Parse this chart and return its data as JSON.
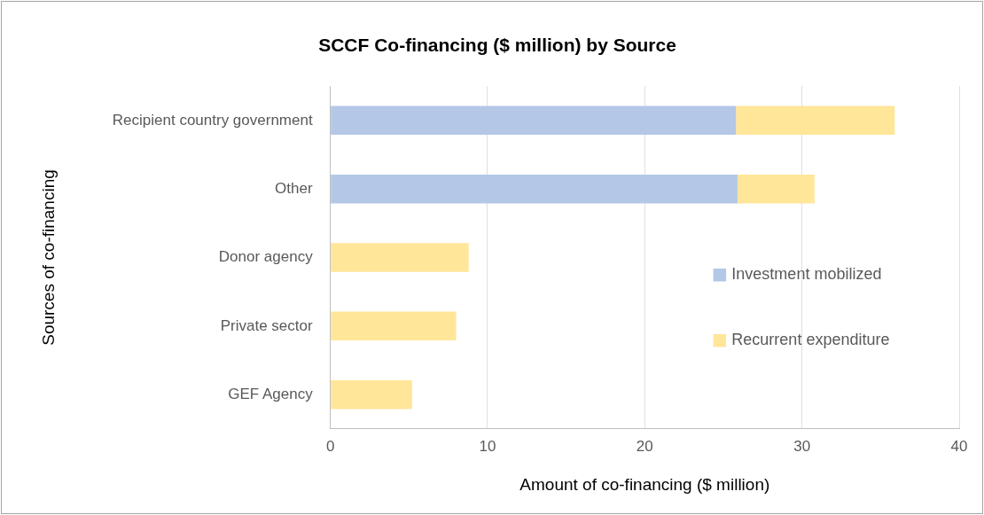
{
  "chart_data": {
    "type": "bar",
    "orientation": "horizontal",
    "stacked": true,
    "title": "SCCF Co-financing ($ million) by Source",
    "xlabel": "Amount of co-financing ($ million)",
    "ylabel": "Sources of co-financing",
    "categories": [
      "Recipient country government",
      "Other",
      "Donor agency",
      "Private sector",
      "GEF Agency"
    ],
    "series": [
      {
        "name": "Investment mobilized",
        "color": "#b4c7e7",
        "values": [
          25.8,
          25.9,
          null,
          null,
          null
        ]
      },
      {
        "name": "Recurrent expenditure",
        "color": "#ffe699",
        "values": [
          10.1,
          4.9,
          8.8,
          8.0,
          5.2
        ]
      }
    ],
    "xlim": [
      0,
      40
    ],
    "xticks": [
      0,
      10,
      20,
      30,
      40
    ],
    "grid": "x",
    "legend": "right"
  }
}
